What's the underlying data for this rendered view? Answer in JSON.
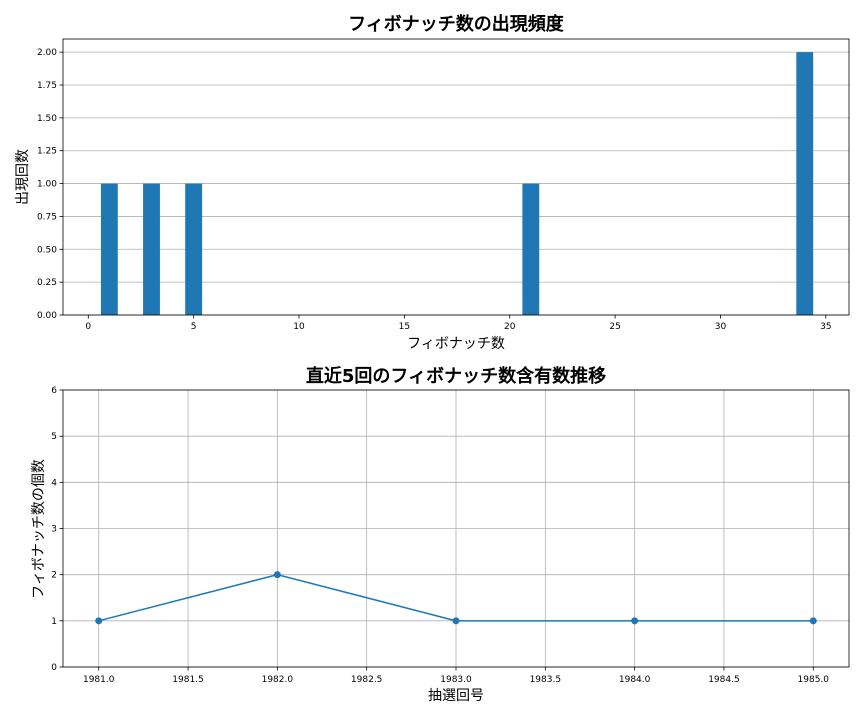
{
  "chart_data": [
    {
      "type": "bar",
      "title": "フィボナッチ数の出現頻度",
      "xlabel": "フィボナッチ数",
      "ylabel": "出現回数",
      "x": [
        1,
        3,
        5,
        21,
        34
      ],
      "values": [
        1,
        1,
        1,
        1,
        2
      ],
      "color": "#1f77b4",
      "xlim": [
        -1.2,
        36.1
      ],
      "ylim": [
        0,
        2.1
      ],
      "xticks": [
        0,
        5,
        10,
        15,
        20,
        25,
        30,
        35
      ],
      "xtick_labels": [
        "0",
        "5",
        "10",
        "15",
        "20",
        "25",
        "30",
        "35"
      ],
      "yticks": [
        0,
        0.25,
        0.5,
        0.75,
        1.0,
        1.25,
        1.5,
        1.75,
        2.0
      ],
      "ytick_labels": [
        "0.00",
        "0.25",
        "0.50",
        "0.75",
        "1.00",
        "1.25",
        "1.50",
        "1.75",
        "2.00"
      ],
      "grid": "y"
    },
    {
      "type": "line",
      "title": "直近5回のフィボナッチ数含有数推移",
      "xlabel": "抽選回号",
      "ylabel": "フィボナッチ数の個数",
      "x": [
        1981,
        1982,
        1983,
        1984,
        1985
      ],
      "values": [
        1,
        2,
        1,
        1,
        1
      ],
      "color": "#1f77b4",
      "marker": "circle",
      "xlim": [
        1980.8,
        1985.2
      ],
      "ylim": [
        0,
        6
      ],
      "xticks": [
        1981.0,
        1981.5,
        1982.0,
        1982.5,
        1983.0,
        1983.5,
        1984.0,
        1984.5,
        1985.0
      ],
      "xtick_labels": [
        "1981.0",
        "1981.5",
        "1982.0",
        "1982.5",
        "1983.0",
        "1983.5",
        "1984.0",
        "1984.5",
        "1985.0"
      ],
      "yticks": [
        0,
        1,
        2,
        3,
        4,
        5,
        6
      ],
      "ytick_labels": [
        "0",
        "1",
        "2",
        "3",
        "4",
        "5",
        "6"
      ],
      "grid": "both"
    }
  ]
}
